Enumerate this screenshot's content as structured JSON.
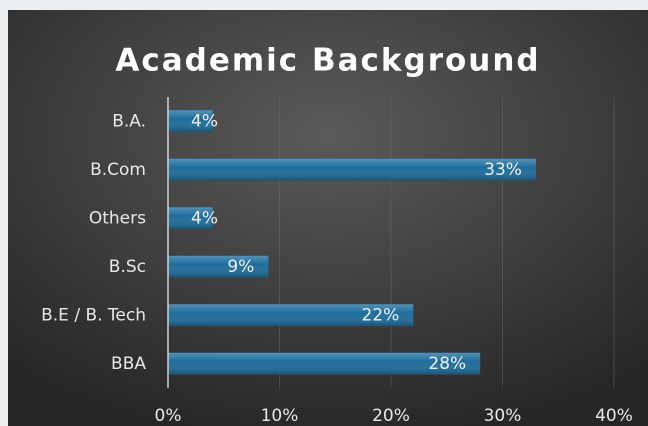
{
  "chart_data": {
    "type": "barh",
    "title": "Academic Background",
    "categories": [
      "B.A.",
      "B.Com",
      "Others",
      "B.Sc",
      "B.E / B. Tech",
      "BBA"
    ],
    "values": [
      4,
      33,
      4,
      9,
      22,
      28
    ],
    "value_labels": [
      "4%",
      "33%",
      "4%",
      "9%",
      "22%",
      "28%"
    ],
    "color": "#1d6d9c",
    "xlim": [
      0,
      40
    ],
    "xticks": [
      {
        "value": 0,
        "label": "0%"
      },
      {
        "value": 10,
        "label": "10%"
      },
      {
        "value": 20,
        "label": "20%"
      },
      {
        "value": 30,
        "label": "30%"
      },
      {
        "value": 40,
        "label": "40%"
      }
    ],
    "grid": true
  }
}
